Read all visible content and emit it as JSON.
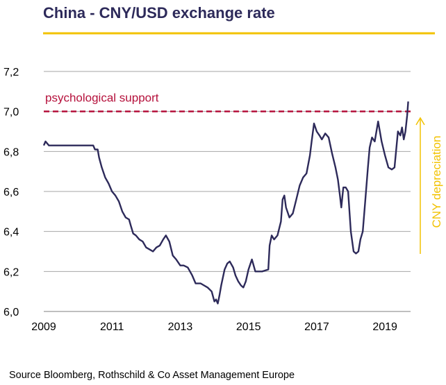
{
  "title": "China - CNY/USD exchange rate",
  "source": "Source Bloomberg, Rothschild & Co Asset Management  Europe",
  "colors": {
    "title": "#2d2a5a",
    "accent": "#f2c200",
    "series": "#2d2a5a",
    "support": "#b5103b",
    "grid": "#a6a6a6"
  },
  "chart_data": {
    "type": "line",
    "title": "China - CNY/USD exchange rate",
    "xlabel": "",
    "ylabel": "",
    "xlim": [
      2009.0,
      2019.75
    ],
    "ylim": [
      6.0,
      7.2
    ],
    "grid": "horizontal",
    "x_ticks": [
      "2009",
      "2011",
      "2013",
      "2015",
      "2017",
      "2019"
    ],
    "y_ticks": [
      "7,2",
      "7,0",
      "6,8",
      "6,6",
      "6,4",
      "6,2",
      "6,0"
    ],
    "series": [
      {
        "values": [
          [
            2009.0,
            6.83
          ],
          [
            2009.05,
            6.85
          ],
          [
            2009.15,
            6.83
          ],
          [
            2009.4,
            6.83
          ],
          [
            2009.8,
            6.83
          ],
          [
            2010.2,
            6.83
          ],
          [
            2010.45,
            6.83
          ],
          [
            2010.5,
            6.81
          ],
          [
            2010.58,
            6.81
          ],
          [
            2010.62,
            6.77
          ],
          [
            2010.7,
            6.72
          ],
          [
            2010.8,
            6.67
          ],
          [
            2010.9,
            6.64
          ],
          [
            2011.0,
            6.6
          ],
          [
            2011.1,
            6.58
          ],
          [
            2011.2,
            6.55
          ],
          [
            2011.3,
            6.5
          ],
          [
            2011.4,
            6.47
          ],
          [
            2011.5,
            6.46
          ],
          [
            2011.55,
            6.43
          ],
          [
            2011.62,
            6.39
          ],
          [
            2011.7,
            6.38
          ],
          [
            2011.8,
            6.36
          ],
          [
            2011.9,
            6.35
          ],
          [
            2012.0,
            6.32
          ],
          [
            2012.1,
            6.31
          ],
          [
            2012.2,
            6.3
          ],
          [
            2012.3,
            6.32
          ],
          [
            2012.4,
            6.33
          ],
          [
            2012.5,
            6.36
          ],
          [
            2012.58,
            6.38
          ],
          [
            2012.68,
            6.35
          ],
          [
            2012.78,
            6.28
          ],
          [
            2012.88,
            6.26
          ],
          [
            2013.0,
            6.23
          ],
          [
            2013.1,
            6.23
          ],
          [
            2013.22,
            6.22
          ],
          [
            2013.35,
            6.18
          ],
          [
            2013.45,
            6.14
          ],
          [
            2013.6,
            6.14
          ],
          [
            2013.7,
            6.13
          ],
          [
            2013.8,
            6.12
          ],
          [
            2013.92,
            6.1
          ],
          [
            2014.0,
            6.05
          ],
          [
            2014.05,
            6.06
          ],
          [
            2014.1,
            6.04
          ],
          [
            2014.15,
            6.08
          ],
          [
            2014.2,
            6.13
          ],
          [
            2014.3,
            6.21
          ],
          [
            2014.38,
            6.24
          ],
          [
            2014.45,
            6.25
          ],
          [
            2014.55,
            6.22
          ],
          [
            2014.62,
            6.18
          ],
          [
            2014.7,
            6.15
          ],
          [
            2014.78,
            6.13
          ],
          [
            2014.85,
            6.12
          ],
          [
            2014.92,
            6.15
          ],
          [
            2015.0,
            6.21
          ],
          [
            2015.1,
            6.26
          ],
          [
            2015.15,
            6.23
          ],
          [
            2015.2,
            6.2
          ],
          [
            2015.4,
            6.2
          ],
          [
            2015.58,
            6.21
          ],
          [
            2015.62,
            6.33
          ],
          [
            2015.68,
            6.38
          ],
          [
            2015.75,
            6.36
          ],
          [
            2015.85,
            6.38
          ],
          [
            2015.95,
            6.45
          ],
          [
            2016.0,
            6.56
          ],
          [
            2016.05,
            6.58
          ],
          [
            2016.1,
            6.52
          ],
          [
            2016.2,
            6.47
          ],
          [
            2016.3,
            6.49
          ],
          [
            2016.4,
            6.56
          ],
          [
            2016.5,
            6.63
          ],
          [
            2016.6,
            6.67
          ],
          [
            2016.7,
            6.69
          ],
          [
            2016.8,
            6.78
          ],
          [
            2016.85,
            6.85
          ],
          [
            2016.92,
            6.94
          ],
          [
            2017.0,
            6.9
          ],
          [
            2017.08,
            6.88
          ],
          [
            2017.15,
            6.86
          ],
          [
            2017.25,
            6.89
          ],
          [
            2017.35,
            6.87
          ],
          [
            2017.45,
            6.79
          ],
          [
            2017.55,
            6.72
          ],
          [
            2017.62,
            6.66
          ],
          [
            2017.68,
            6.58
          ],
          [
            2017.72,
            6.52
          ],
          [
            2017.78,
            6.62
          ],
          [
            2017.85,
            6.62
          ],
          [
            2017.92,
            6.6
          ],
          [
            2018.0,
            6.4
          ],
          [
            2018.08,
            6.3
          ],
          [
            2018.15,
            6.29
          ],
          [
            2018.22,
            6.3
          ],
          [
            2018.28,
            6.36
          ],
          [
            2018.35,
            6.4
          ],
          [
            2018.42,
            6.55
          ],
          [
            2018.5,
            6.72
          ],
          [
            2018.55,
            6.82
          ],
          [
            2018.62,
            6.87
          ],
          [
            2018.7,
            6.85
          ],
          [
            2018.8,
            6.95
          ],
          [
            2018.85,
            6.9
          ],
          [
            2018.9,
            6.85
          ],
          [
            2019.0,
            6.78
          ],
          [
            2019.1,
            6.72
          ],
          [
            2019.2,
            6.71
          ],
          [
            2019.28,
            6.72
          ],
          [
            2019.38,
            6.9
          ],
          [
            2019.45,
            6.88
          ],
          [
            2019.5,
            6.92
          ],
          [
            2019.55,
            6.86
          ],
          [
            2019.6,
            6.9
          ],
          [
            2019.65,
            6.98
          ],
          [
            2019.68,
            7.05
          ]
        ]
      }
    ],
    "reference_line": {
      "value": 7.0,
      "label": "psychological support"
    },
    "annotations": [
      {
        "text": "CNY depreciation",
        "direction": "up"
      }
    ]
  }
}
